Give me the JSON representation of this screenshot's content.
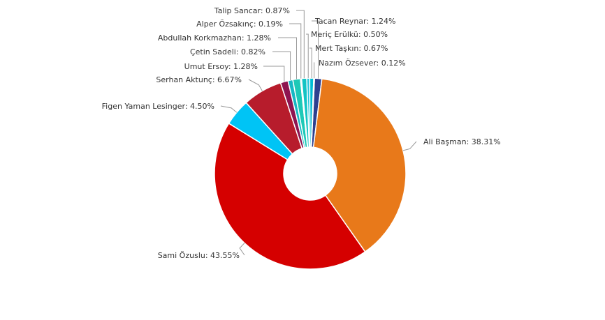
{
  "chart_data": {
    "type": "pie",
    "donut": true,
    "title": "",
    "legend": "none",
    "slices": [
      {
        "label": "Tacan Reynar",
        "value": 1.24,
        "display": "Tacan Reynar: 1.24%",
        "color": "#2e3f8f"
      },
      {
        "label": "Ali Başman",
        "value": 38.31,
        "display": "Ali Başman: 38.31%",
        "color": "#e8791a"
      },
      {
        "label": "Sami Özuslu",
        "value": 43.55,
        "display": "Sami Özuslu: 43.55%",
        "color": "#d50000"
      },
      {
        "label": "Figen Yaman Lesinger",
        "value": 4.5,
        "display": "Figen Yaman Lesinger: 4.50%",
        "color": "#00c4f5"
      },
      {
        "label": "Serhan Aktunç",
        "value": 6.67,
        "display": "Serhan Aktunç: 6.67%",
        "color": "#b71c2c"
      },
      {
        "label": "Umut Ersoy",
        "value": 1.28,
        "display": "Umut Ersoy: 1.28%",
        "color": "#8e1550"
      },
      {
        "label": "Çetin Sadeli",
        "value": 0.82,
        "display": "Çetin Sadeli: 0.82%",
        "color": "#17b8c4"
      },
      {
        "label": "Abdullah Korkmazhan",
        "value": 1.28,
        "display": "Abdullah Korkmazhan: 1.28%",
        "color": "#1dc9b7"
      },
      {
        "label": "Alper Özsakınç",
        "value": 0.19,
        "display": "Alper Özsakınç: 0.19%",
        "color": "#4dd0c8"
      },
      {
        "label": "Talip Sancar",
        "value": 0.87,
        "display": "Talip Sancar: 0.87%",
        "color": "#13c4c4"
      },
      {
        "label": "Meriç Erülkü",
        "value": 0.5,
        "display": "Meriç Erülkü: 0.50%",
        "color": "#26c6da"
      },
      {
        "label": "Mert Taşkın",
        "value": 0.67,
        "display": "Mert Taşkın: 0.67%",
        "color": "#00bcd4"
      },
      {
        "label": "Nazım Özsever",
        "value": 0.12,
        "display": "Nazım Özsever: 0.12%",
        "color": "#3f51b5"
      }
    ]
  }
}
